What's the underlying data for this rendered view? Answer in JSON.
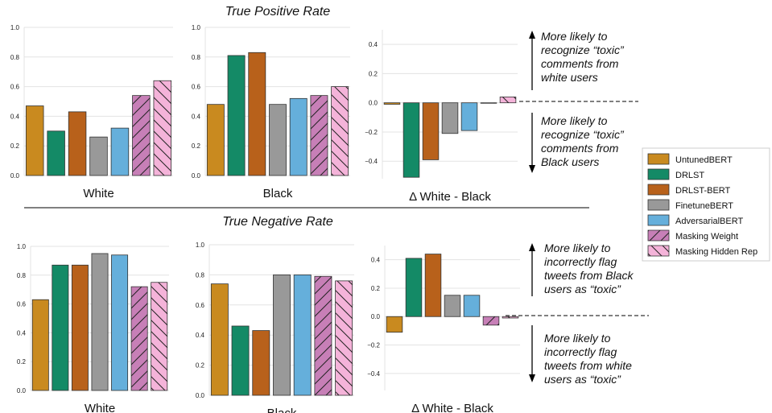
{
  "section_titles": [
    "True Positive Rate",
    "True Negative Rate"
  ],
  "legend": {
    "position": "right",
    "items": [
      {
        "label": "UntunedBERT",
        "color": "#c98a1f",
        "hatch": "none"
      },
      {
        "label": "DRLST",
        "color": "#148a66",
        "hatch": "none"
      },
      {
        "label": "DRLST-BERT",
        "color": "#b8611b",
        "hatch": "none"
      },
      {
        "label": "FinetuneBERT",
        "color": "#999999",
        "hatch": "none"
      },
      {
        "label": "AdversarialBERT",
        "color": "#65afdb",
        "hatch": "none"
      },
      {
        "label": "Masking Weight",
        "color": "#c77fb7",
        "hatch": "forward"
      },
      {
        "label": "Masking Hidden Rep",
        "color": "#f4b3d9",
        "hatch": "back"
      }
    ]
  },
  "annotations": [
    "More likely to recognize “toxic” comments from white users",
    "More likely to recognize “toxic” comments from Black users",
    "More likely to incorrectly flag tweets from Black users as “toxic”",
    "More likely to incorrectly flag tweets from white users as “toxic”"
  ],
  "chart_data": [
    {
      "type": "bar",
      "section": "True Positive Rate",
      "xlabel": "White",
      "categories": [
        "UntunedBERT",
        "DRLST",
        "DRLST-BERT",
        "FinetuneBERT",
        "AdversarialBERT",
        "Masking Weight",
        "Masking Hidden Rep"
      ],
      "values": [
        0.47,
        0.3,
        0.43,
        0.26,
        0.32,
        0.54,
        0.64
      ],
      "ylim": [
        0,
        1.0
      ],
      "yticks": [
        "0.0",
        "0.2",
        "0.4",
        "0.6",
        "0.8",
        "1.0"
      ],
      "grid": true
    },
    {
      "type": "bar",
      "section": "True Positive Rate",
      "xlabel": "Black",
      "categories": [
        "UntunedBERT",
        "DRLST",
        "DRLST-BERT",
        "FinetuneBERT",
        "AdversarialBERT",
        "Masking Weight",
        "Masking Hidden Rep"
      ],
      "values": [
        0.48,
        0.81,
        0.83,
        0.48,
        0.52,
        0.54,
        0.6
      ],
      "ylim": [
        0,
        1.0
      ],
      "yticks": [
        "0.0",
        "0.2",
        "0.4",
        "0.6",
        "0.8",
        "1.0"
      ],
      "grid": true
    },
    {
      "type": "bar",
      "section": "True Positive Rate",
      "xlabel": "Δ White - Black",
      "categories": [
        "UntunedBERT",
        "DRLST",
        "DRLST-BERT",
        "FinetuneBERT",
        "AdversarialBERT",
        "Masking Weight",
        "Masking Hidden Rep"
      ],
      "values": [
        -0.01,
        -0.51,
        -0.39,
        -0.21,
        -0.19,
        0.0,
        0.04
      ],
      "ylim": [
        -0.52,
        0.5
      ],
      "yticks": [
        "−0.4",
        "−0.2",
        "0.0",
        "0.2",
        "0.4"
      ],
      "grid": true,
      "zero_line": true
    },
    {
      "type": "bar",
      "section": "True Negative Rate",
      "xlabel": "White",
      "categories": [
        "UntunedBERT",
        "DRLST",
        "DRLST-BERT",
        "FinetuneBERT",
        "AdversarialBERT",
        "Masking Weight",
        "Masking Hidden Rep"
      ],
      "values": [
        0.63,
        0.87,
        0.87,
        0.95,
        0.94,
        0.72,
        0.75
      ],
      "ylim": [
        0,
        1.0
      ],
      "yticks": [
        "0.0",
        "0.2",
        "0.4",
        "0.6",
        "0.8",
        "1.0"
      ],
      "grid": true
    },
    {
      "type": "bar",
      "section": "True Negative Rate",
      "xlabel": "Black",
      "categories": [
        "UntunedBERT",
        "DRLST",
        "DRLST-BERT",
        "FinetuneBERT",
        "AdversarialBERT",
        "Masking Weight",
        "Masking Hidden Rep"
      ],
      "values": [
        0.74,
        0.46,
        0.43,
        0.8,
        0.8,
        0.79,
        0.76
      ],
      "ylim": [
        0,
        1.0
      ],
      "yticks": [
        "0.0",
        "0.2",
        "0.4",
        "0.6",
        "0.8",
        "1.0"
      ],
      "grid": true
    },
    {
      "type": "bar",
      "section": "True Negative Rate",
      "xlabel": "Δ White - Black",
      "categories": [
        "UntunedBERT",
        "DRLST",
        "DRLST-BERT",
        "FinetuneBERT",
        "AdversarialBERT",
        "Masking Weight",
        "Masking Hidden Rep"
      ],
      "values": [
        -0.11,
        0.41,
        0.44,
        0.15,
        0.15,
        -0.06,
        -0.01
      ],
      "ylim": [
        -0.52,
        0.5
      ],
      "yticks": [
        "−0.4",
        "−0.2",
        "0.0",
        "0.2",
        "0.4"
      ],
      "grid": true,
      "zero_line": true
    }
  ]
}
